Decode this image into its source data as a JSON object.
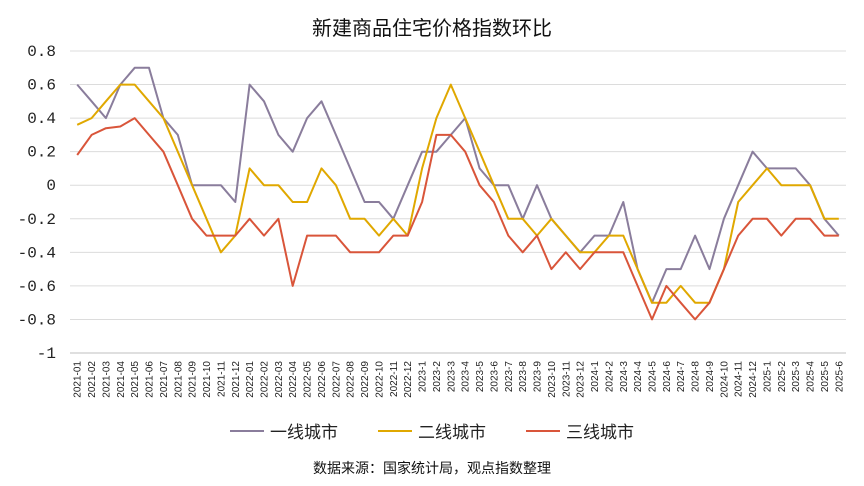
{
  "chart_data": {
    "type": "line",
    "title": "新建商品住宅价格指数环比",
    "source": "数据来源：国家统计局，观点指数整理",
    "ylim": [
      -1,
      0.8
    ],
    "yticks": [
      0.8,
      0.6,
      0.4,
      0.2,
      0,
      -0.2,
      -0.4,
      -0.6,
      -0.8,
      -1
    ],
    "ytick_labels": [
      "0.8",
      "0.6",
      "0.4",
      "0.2",
      "0",
      "-0.2",
      "-0.4",
      "-0.6",
      "-0.8",
      "-1"
    ],
    "categories": [
      "2021-01",
      "2021-02",
      "2021-03",
      "2021-04",
      "2021-05",
      "2021-06",
      "2021-07",
      "2021-08",
      "2021-09",
      "2021-10",
      "2021-11",
      "2021-12",
      "2022-01",
      "2022-02",
      "2022-03",
      "2022-04",
      "2022-05",
      "2022-06",
      "2022-07",
      "2022-08",
      "2022-09",
      "2022-10",
      "2022-11",
      "2022-12",
      "2023-1",
      "2023-2",
      "2023-3",
      "2023-4",
      "2023-5",
      "2023-6",
      "2023-7",
      "2023-8",
      "2023-9",
      "2023-10",
      "2023-11",
      "2023-12",
      "2024-1",
      "2024-2",
      "2024-3",
      "2024-4",
      "2024-5",
      "2024-6",
      "2024-7",
      "2024-8",
      "2024-9",
      "2024-10",
      "2024-11",
      "2024-12",
      "2025-1",
      "2025-2",
      "2025-3",
      "2025-4",
      "2025-5",
      "2025-6"
    ],
    "series": [
      {
        "name": "一线城市",
        "color": "#8a7d9c",
        "values": [
          0.6,
          0.5,
          0.4,
          0.6,
          0.7,
          0.7,
          0.4,
          0.3,
          0,
          0,
          0,
          -0.1,
          0.6,
          0.5,
          0.3,
          0.2,
          0.4,
          0.5,
          0.3,
          0.1,
          -0.1,
          -0.1,
          -0.2,
          0,
          0.2,
          0.2,
          0.3,
          0.4,
          0.1,
          0,
          0,
          -0.2,
          0,
          -0.2,
          -0.3,
          -0.4,
          -0.3,
          -0.3,
          -0.1,
          -0.5,
          -0.7,
          -0.5,
          -0.5,
          -0.3,
          -0.5,
          -0.2,
          0,
          0.2,
          0.1,
          0.1,
          0.1,
          0,
          -0.2,
          -0.3
        ]
      },
      {
        "name": "二线城市",
        "color": "#e0a800",
        "values": [
          0.36,
          0.4,
          0.5,
          0.6,
          0.6,
          0.5,
          0.4,
          0.2,
          0,
          -0.2,
          -0.4,
          -0.3,
          0.1,
          0,
          0,
          -0.1,
          -0.1,
          0.1,
          0,
          -0.2,
          -0.2,
          -0.3,
          -0.2,
          -0.3,
          0.1,
          0.4,
          0.6,
          0.4,
          0.2,
          0,
          -0.2,
          -0.2,
          -0.3,
          -0.2,
          -0.3,
          -0.4,
          -0.4,
          -0.3,
          -0.3,
          -0.5,
          -0.7,
          -0.7,
          -0.6,
          -0.7,
          -0.7,
          -0.5,
          -0.1,
          0,
          0.1,
          0,
          0,
          0,
          -0.2,
          -0.2
        ]
      },
      {
        "name": "三线城市",
        "color": "#d9553a",
        "values": [
          0.18,
          0.3,
          0.34,
          0.35,
          0.4,
          0.3,
          0.2,
          0,
          -0.2,
          -0.3,
          -0.3,
          -0.3,
          -0.2,
          -0.3,
          -0.2,
          -0.6,
          -0.3,
          -0.3,
          -0.3,
          -0.4,
          -0.4,
          -0.4,
          -0.3,
          -0.3,
          -0.1,
          0.3,
          0.3,
          0.2,
          0,
          -0.1,
          -0.3,
          -0.4,
          -0.3,
          -0.5,
          -0.4,
          -0.5,
          -0.4,
          -0.4,
          -0.4,
          -0.6,
          -0.8,
          -0.6,
          -0.7,
          -0.8,
          -0.7,
          -0.5,
          -0.3,
          -0.2,
          -0.2,
          -0.3,
          -0.2,
          -0.2,
          -0.3,
          -0.3
        ]
      }
    ]
  }
}
